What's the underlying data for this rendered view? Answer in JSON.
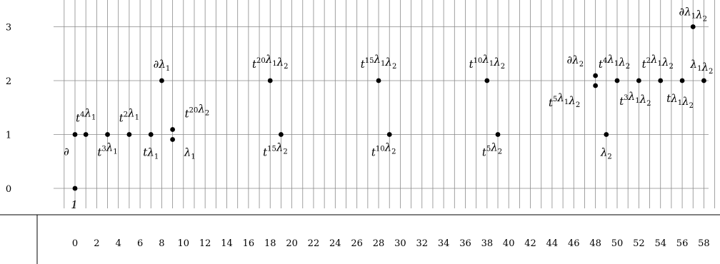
{
  "chart_data": {
    "type": "scatter",
    "x_ticks": [
      0,
      2,
      4,
      6,
      8,
      10,
      12,
      14,
      16,
      18,
      20,
      22,
      24,
      26,
      28,
      30,
      32,
      34,
      36,
      38,
      40,
      42,
      44,
      46,
      48,
      50,
      52,
      54,
      56,
      58
    ],
    "y_ticks": [
      0,
      1,
      2,
      3
    ],
    "xlim": [
      -1,
      59
    ],
    "ylim": [
      0,
      3
    ],
    "points": [
      {
        "x": 0,
        "y": 1,
        "label": [
          [
            "∂",
            ""
          ]
        ]
      },
      {
        "x": 0,
        "y": 0,
        "label": [
          [
            "1",
            ""
          ]
        ]
      },
      {
        "x": 1,
        "y": 1,
        "label": [
          [
            "t",
            "4"
          ],
          [
            "λ",
            ""
          ],
          [
            "1",
            "sub"
          ]
        ]
      },
      {
        "x": 3,
        "y": 1,
        "label": [
          [
            "t",
            "3"
          ],
          [
            "λ",
            ""
          ],
          [
            "1",
            "sub"
          ]
        ]
      },
      {
        "x": 5,
        "y": 1,
        "label": [
          [
            "t",
            "2"
          ],
          [
            "λ",
            ""
          ],
          [
            "1",
            "sub"
          ]
        ]
      },
      {
        "x": 7,
        "y": 1,
        "label": [
          [
            "tλ",
            ""
          ],
          [
            "1",
            "sub"
          ]
        ]
      },
      {
        "x": 8,
        "y": 2,
        "label": [
          [
            "∂λ",
            ""
          ],
          [
            "1",
            "sub"
          ]
        ]
      },
      {
        "x": 9,
        "y": 1,
        "label": [
          [
            "t",
            "20"
          ],
          [
            "λ",
            ""
          ],
          [
            "2",
            "sub"
          ]
        ],
        "pair": "upper"
      },
      {
        "x": 9,
        "y": 1,
        "label": [
          [
            "λ",
            ""
          ],
          [
            "1",
            "sub"
          ]
        ],
        "pair": "lower"
      },
      {
        "x": 18,
        "y": 2,
        "label": [
          [
            "t",
            "20"
          ],
          [
            "λ",
            ""
          ],
          [
            "1",
            "sub"
          ],
          [
            "λ",
            ""
          ],
          [
            "2",
            "sub"
          ]
        ]
      },
      {
        "x": 19,
        "y": 1,
        "label": [
          [
            "t",
            "15"
          ],
          [
            "λ",
            ""
          ],
          [
            "2",
            "sub"
          ]
        ]
      },
      {
        "x": 28,
        "y": 2,
        "label": [
          [
            "t",
            "15"
          ],
          [
            "λ",
            ""
          ],
          [
            "1",
            "sub"
          ],
          [
            "λ",
            ""
          ],
          [
            "2",
            "sub"
          ]
        ]
      },
      {
        "x": 29,
        "y": 1,
        "label": [
          [
            "t",
            "10"
          ],
          [
            "λ",
            ""
          ],
          [
            "2",
            "sub"
          ]
        ]
      },
      {
        "x": 38,
        "y": 2,
        "label": [
          [
            "t",
            "10"
          ],
          [
            "λ",
            ""
          ],
          [
            "1",
            "sub"
          ],
          [
            "λ",
            ""
          ],
          [
            "2",
            "sub"
          ]
        ]
      },
      {
        "x": 39,
        "y": 1,
        "label": [
          [
            "t",
            "5"
          ],
          [
            "λ",
            ""
          ],
          [
            "2",
            "sub"
          ]
        ]
      },
      {
        "x": 48,
        "y": 2,
        "label": [
          [
            "∂λ",
            ""
          ],
          [
            "2",
            "sub"
          ]
        ],
        "pair": "upper"
      },
      {
        "x": 48,
        "y": 2,
        "label": [
          [
            "t",
            "5"
          ],
          [
            "λ",
            ""
          ],
          [
            "1",
            "sub"
          ],
          [
            "λ",
            ""
          ],
          [
            "2",
            "sub"
          ]
        ],
        "pair": "lower"
      },
      {
        "x": 49,
        "y": 1,
        "label": [
          [
            "λ",
            ""
          ],
          [
            "2",
            "sub"
          ]
        ]
      },
      {
        "x": 50,
        "y": 2,
        "label": [
          [
            "t",
            "4"
          ],
          [
            "λ",
            ""
          ],
          [
            "1",
            "sub"
          ],
          [
            "λ",
            ""
          ],
          [
            "2",
            "sub"
          ]
        ]
      },
      {
        "x": 52,
        "y": 2,
        "label": [
          [
            "t",
            "3"
          ],
          [
            "λ",
            ""
          ],
          [
            "1",
            "sub"
          ],
          [
            "λ",
            ""
          ],
          [
            "2",
            "sub"
          ]
        ]
      },
      {
        "x": 54,
        "y": 2,
        "label": [
          [
            "t",
            "2"
          ],
          [
            "λ",
            ""
          ],
          [
            "1",
            "sub"
          ],
          [
            "λ",
            ""
          ],
          [
            "2",
            "sub"
          ]
        ]
      },
      {
        "x": 56,
        "y": 2,
        "label": [
          [
            "tλ",
            ""
          ],
          [
            "1",
            "sub"
          ],
          [
            "λ",
            ""
          ],
          [
            "2",
            "sub"
          ]
        ]
      },
      {
        "x": 57,
        "y": 3,
        "label": [
          [
            "∂λ",
            ""
          ],
          [
            "1",
            "sub"
          ],
          [
            "λ",
            ""
          ],
          [
            "2",
            "sub"
          ]
        ]
      },
      {
        "x": 58,
        "y": 2,
        "label": [
          [
            "λ",
            ""
          ],
          [
            "1",
            "sub"
          ],
          [
            "λ",
            ""
          ],
          [
            "2",
            "sub"
          ]
        ]
      }
    ]
  }
}
